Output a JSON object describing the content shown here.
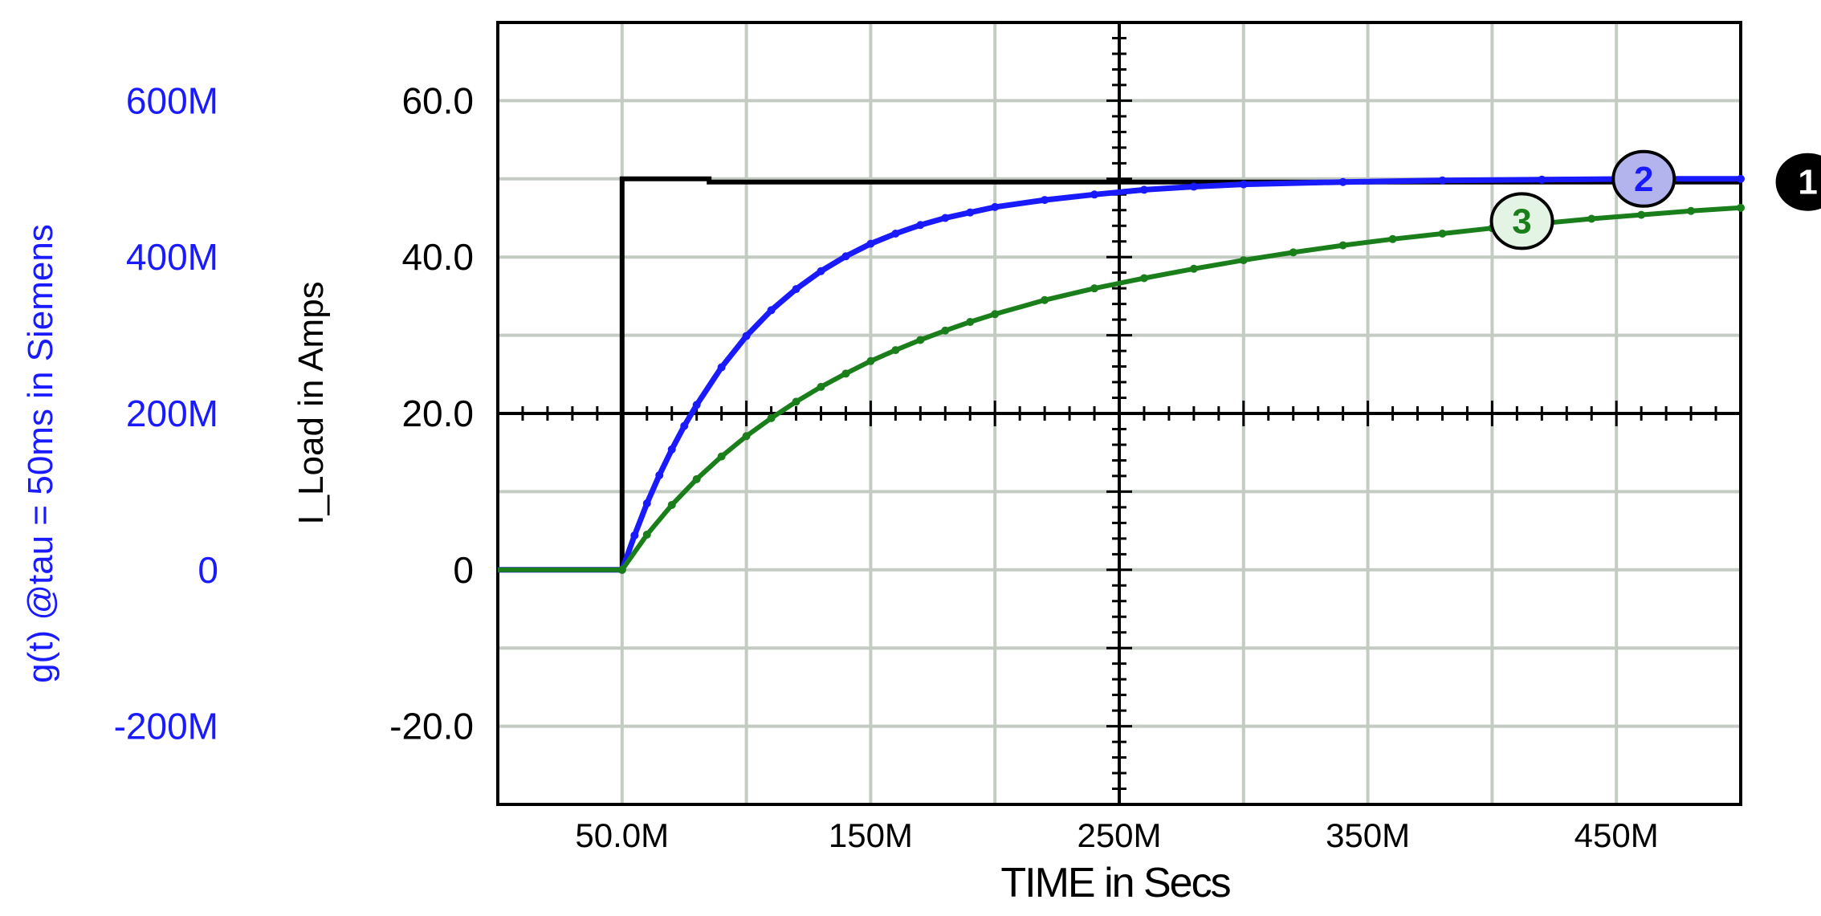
{
  "chart_data": {
    "type": "line",
    "xlabel": "TIME in Secs",
    "ylabel_left": "g(t) @tau = 50ms in Siemens",
    "ylabel_right": "I_Load in Amps",
    "x_unit_scale": "M = milli",
    "xlim": [
      0,
      500
    ],
    "ylim_right": [
      -30,
      70
    ],
    "ylim_left": [
      -300,
      700
    ],
    "x_ticks": [
      50,
      150,
      250,
      350,
      450
    ],
    "x_tick_labels": [
      "50.0M",
      "150M",
      "250M",
      "350M",
      "450M"
    ],
    "y_ticks_right": [
      -20,
      0,
      20,
      40,
      60
    ],
    "y_tick_labels_right": [
      "-20.0",
      "0",
      "20.0",
      "40.0",
      "60.0"
    ],
    "y_ticks_left": [
      -200,
      0,
      200,
      400,
      600
    ],
    "y_tick_labels_left": [
      "-200M",
      "0",
      "200M",
      "400M",
      "600M"
    ],
    "grid": true,
    "series": [
      {
        "id": "1",
        "color": "#000000",
        "axis": "right",
        "x": [
          0,
          50,
          50,
          85,
          85,
          500
        ],
        "y": [
          0,
          0,
          50,
          50,
          49.6,
          49.6
        ]
      },
      {
        "id": "2",
        "color": "#1a1aff",
        "axis": "right",
        "x": [
          0,
          50,
          55,
          60,
          65,
          70,
          75,
          80,
          90,
          100,
          110,
          120,
          130,
          140,
          150,
          160,
          170,
          180,
          190,
          200,
          220,
          240,
          260,
          280,
          300,
          340,
          380,
          420,
          460,
          500
        ],
        "y": [
          0,
          0,
          4.4,
          8.5,
          12.1,
          15.4,
          18.4,
          21.1,
          25.9,
          29.9,
          33.2,
          35.9,
          38.2,
          40.1,
          41.7,
          43.0,
          44.1,
          45.0,
          45.7,
          46.4,
          47.3,
          48.0,
          48.6,
          49.0,
          49.3,
          49.6,
          49.8,
          49.9,
          50.0,
          50.0
        ]
      },
      {
        "id": "3",
        "color": "#1a7f1a",
        "axis": "right",
        "x": [
          0,
          50,
          60,
          70,
          80,
          90,
          100,
          110,
          120,
          130,
          140,
          150,
          160,
          170,
          180,
          190,
          200,
          220,
          240,
          260,
          280,
          300,
          320,
          340,
          360,
          380,
          400,
          420,
          440,
          460,
          480,
          500
        ],
        "y": [
          0,
          0,
          4.5,
          8.3,
          11.6,
          14.5,
          17.1,
          19.4,
          21.5,
          23.4,
          25.1,
          26.7,
          28.1,
          29.4,
          30.6,
          31.7,
          32.7,
          34.5,
          36.0,
          37.3,
          38.5,
          39.6,
          40.6,
          41.5,
          42.3,
          43.0,
          43.7,
          44.3,
          44.9,
          45.4,
          45.9,
          46.3
        ]
      }
    ],
    "markers": [
      {
        "label": "1",
        "series": "1",
        "x": 527,
        "y": 49.6
      },
      {
        "label": "2",
        "series": "2",
        "x": 461,
        "y": 50.0
      },
      {
        "label": "3",
        "series": "3",
        "x": 412,
        "y": 44.6
      }
    ]
  }
}
